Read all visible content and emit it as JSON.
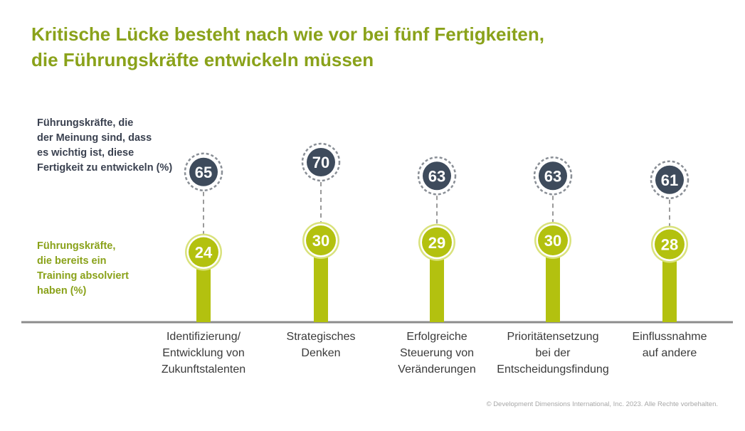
{
  "title_lines": [
    "Kritische Lücke besteht nach wie vor bei fünf Fertigkeiten,",
    "die Führungskräfte entwickeln müssen"
  ],
  "legend": {
    "important_lines": [
      "Führungskräfte, die",
      "der Meinung sind, dass",
      "es wichtig ist, diese",
      "Fertigkeit zu entwickeln (%)"
    ],
    "trained_lines": [
      "Führungskräfte,",
      "die bereits ein",
      "Training absolviert",
      "haben (%)"
    ]
  },
  "copyright": "© Development Dimensions International, Inc. 2023. Alle Rechte vorbehalten.",
  "colors": {
    "title": "#8aa21a",
    "dark_circle": "#3e4b5c",
    "green": "#b3c10f",
    "green_light": "#d9e27c",
    "dashed_line": "#9a9a9a",
    "baseline": "#8c8c8c"
  },
  "chart_data": {
    "type": "lollipop",
    "categories": [
      [
        "Identifizierung/",
        "Entwicklung von",
        "Zukunftstalenten"
      ],
      [
        "Strategisches",
        "Denken"
      ],
      [
        "Erfolgreiche",
        "Steuerung von",
        "Veränderungen"
      ],
      [
        "Prioritätensetzung",
        "bei der",
        "Entscheidungsfindung"
      ],
      [
        "Einflussnahme",
        "auf andere"
      ]
    ],
    "series": [
      {
        "name": "Führungskräfte, die der Meinung sind, dass es wichtig ist, diese Fertigkeit zu entwickeln (%)",
        "values": [
          65,
          70,
          63,
          63,
          61
        ]
      },
      {
        "name": "Führungskräfte, die bereits ein Training absolviert haben (%)",
        "values": [
          24,
          30,
          29,
          30,
          28
        ]
      }
    ]
  }
}
